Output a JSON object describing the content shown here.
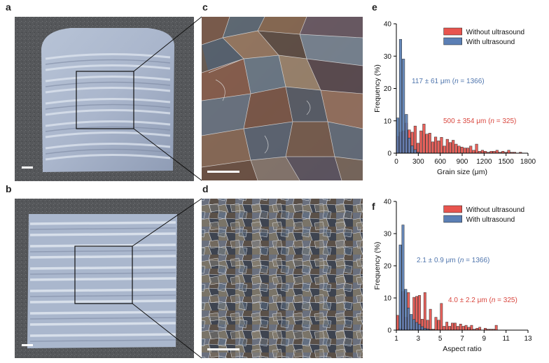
{
  "panels": {
    "a": "a",
    "b": "b",
    "c": "c",
    "d": "d",
    "e": "e",
    "f": "f"
  },
  "colors": {
    "without": "#e8544e",
    "with": "#5b7fb5",
    "without_text": "#d9473f",
    "with_text": "#4f75ad"
  },
  "chart_data": [
    {
      "panel": "e",
      "type": "bar",
      "xlabel": "Grain size (μm)",
      "ylabel": "Frequency (%)",
      "xlim": [
        0,
        1800
      ],
      "ylim": [
        0,
        40
      ],
      "xticks": [
        "0",
        "300",
        "600",
        "900",
        "1200",
        "1500",
        "1800"
      ],
      "yticks": [
        "0",
        "10",
        "20",
        "30",
        "40"
      ],
      "bin_width": 40,
      "legend_position": "top-right",
      "series": [
        {
          "name": "Without ultrasound",
          "x": [
            20,
            60,
            100,
            140,
            180,
            220,
            260,
            300,
            340,
            380,
            420,
            460,
            500,
            540,
            580,
            620,
            660,
            700,
            740,
            780,
            820,
            860,
            900,
            940,
            980,
            1020,
            1060,
            1100,
            1140,
            1180,
            1220,
            1260,
            1300,
            1340,
            1380,
            1420,
            1460,
            1500,
            1540,
            1580,
            1620,
            1660,
            1700
          ],
          "values": [
            5.2,
            6.5,
            6.9,
            9.3,
            7.2,
            6.5,
            8.4,
            3.1,
            6.9,
            9.0,
            5.9,
            6.2,
            3.5,
            5.0,
            3.8,
            4.9,
            2.2,
            4.3,
            3.3,
            4.0,
            2.8,
            2.2,
            1.9,
            1.6,
            1.6,
            2.2,
            0.9,
            2.8,
            0.6,
            0.9,
            0.6,
            0.3,
            0.6,
            0.6,
            0.9,
            0.3,
            0.6,
            0.3,
            0.9,
            0.3,
            0.3,
            0,
            0.3
          ]
        },
        {
          "name": "With ultrasound",
          "x": [
            20,
            60,
            100,
            140,
            180,
            220,
            260,
            300
          ],
          "values": [
            10.9,
            35.2,
            29.1,
            12.0,
            4.7,
            2.3,
            1.1,
            0.3
          ]
        }
      ],
      "annotations": [
        {
          "series": "With ultrasound",
          "text": "117 ± 61 μm (n = 1366)",
          "parts": [
            "117 ± 61 μm (",
            "n",
            " = 1366)"
          ]
        },
        {
          "series": "Without ultrasound",
          "text": "500 ± 354 μm (n = 325)",
          "parts": [
            "500 ± 354 μm (",
            "n",
            " = 325)"
          ]
        }
      ]
    },
    {
      "panel": "f",
      "type": "bar",
      "xlabel": "Aspect ratio",
      "ylabel": "Frequency (%)",
      "xlim": [
        1,
        13
      ],
      "ylim": [
        0,
        40
      ],
      "xticks": [
        "1",
        "3",
        "5",
        "7",
        "9",
        "11",
        "13"
      ],
      "yticks": [
        "0",
        "10",
        "20",
        "30",
        "40"
      ],
      "bin_width": 0.25,
      "legend_position": "top-right",
      "series": [
        {
          "name": "Without ultrasound",
          "x": [
            1.125,
            1.375,
            1.625,
            1.875,
            2.125,
            2.375,
            2.625,
            2.875,
            3.125,
            3.375,
            3.625,
            3.875,
            4.125,
            4.375,
            4.625,
            4.875,
            5.125,
            5.375,
            5.625,
            5.875,
            6.125,
            6.375,
            6.625,
            6.875,
            7.125,
            7.375,
            7.625,
            7.875,
            8.125,
            8.375,
            8.625,
            8.875,
            9.125,
            9.375,
            9.625,
            9.875,
            10.125
          ],
          "values": [
            4.6,
            0.6,
            12.0,
            4.0,
            11.7,
            0.4,
            10.2,
            10.5,
            10.8,
            3.4,
            11.7,
            3.1,
            6.5,
            0.3,
            4.0,
            3.1,
            8.3,
            1.2,
            2.5,
            1.2,
            2.2,
            2.2,
            1.2,
            1.9,
            1.2,
            1.5,
            0.9,
            1.5,
            0.3,
            0.6,
            0.9,
            0,
            0.6,
            0.3,
            0.3,
            0.3,
            1.5
          ]
        },
        {
          "name": "With ultrasound",
          "x": [
            1.375,
            1.625,
            1.875,
            2.125,
            2.375,
            2.625,
            2.875,
            3.125,
            3.375,
            3.625,
            3.875,
            4.125,
            4.375
          ],
          "values": [
            26.5,
            32.7,
            12.7,
            6.9,
            4.9,
            3.3,
            2.4,
            1.8,
            1.1,
            0.6,
            0.4,
            0.2,
            0.1
          ]
        }
      ],
      "annotations": [
        {
          "series": "With ultrasound",
          "text": "2.1 ± 0.9 μm (n = 1366)",
          "parts": [
            "2.1 ± 0.9 μm (",
            "n",
            " = 1366)"
          ]
        },
        {
          "series": "Without ultrasound",
          "text": "4.0 ± 2.2 μm (n = 325)",
          "parts": [
            "4.0 ± 2.2 μm (",
            "n",
            " = 325)"
          ]
        }
      ]
    }
  ]
}
